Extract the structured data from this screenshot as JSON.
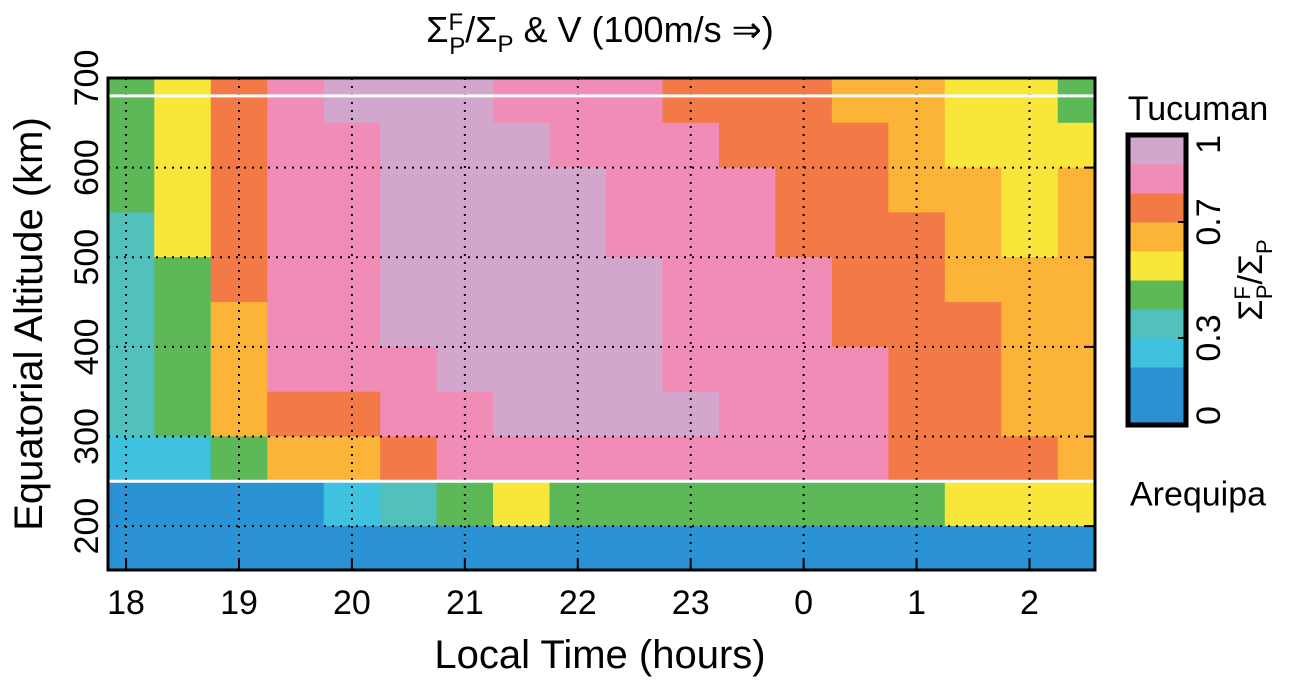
{
  "chart_data": {
    "type": "contour",
    "title": [
      "Σ",
      "F",
      "P",
      "/Σ",
      "P",
      " & V (100m/s ⇒)"
    ],
    "xlabel": "Local Time (hours)",
    "ylabel": "Equatorial Altitude (km)",
    "xlim": [
      17.84,
      26.58
    ],
    "ylim": [
      151,
      700
    ],
    "xticks": [
      18,
      19,
      20,
      21,
      22,
      23,
      {
        "value": 24,
        "label": "0"
      },
      {
        "value": 25,
        "label": "1"
      },
      {
        "value": 26,
        "label": "2"
      }
    ],
    "yticks": [
      200,
      300,
      400,
      500,
      600,
      700
    ],
    "grid": true,
    "x": [
      18,
      18.5,
      19,
      19.5,
      20,
      20.5,
      21,
      21.5,
      22,
      22.5,
      23,
      23.5,
      24,
      24.5,
      25,
      25.5,
      26,
      26.5
    ],
    "y": [
      675,
      625,
      575,
      525,
      475,
      425,
      375,
      325,
      275,
      225,
      175
    ],
    "z": [
      [
        0.45,
        0.55,
        0.75,
        0.85,
        0.92,
        0.92,
        0.92,
        0.85,
        0.85,
        0.85,
        0.78,
        0.78,
        0.75,
        0.65,
        0.62,
        0.55,
        0.55,
        0.45
      ],
      [
        0.45,
        0.55,
        0.75,
        0.85,
        0.85,
        0.92,
        0.92,
        0.92,
        0.85,
        0.85,
        0.85,
        0.78,
        0.75,
        0.75,
        0.65,
        0.55,
        0.55,
        0.55
      ],
      [
        0.45,
        0.55,
        0.75,
        0.85,
        0.85,
        0.92,
        0.92,
        0.92,
        0.92,
        0.85,
        0.85,
        0.85,
        0.78,
        0.75,
        0.65,
        0.62,
        0.55,
        0.62
      ],
      [
        0.35,
        0.55,
        0.75,
        0.85,
        0.85,
        0.92,
        0.92,
        0.92,
        0.92,
        0.85,
        0.85,
        0.85,
        0.78,
        0.75,
        0.75,
        0.65,
        0.55,
        0.62
      ],
      [
        0.35,
        0.45,
        0.75,
        0.85,
        0.85,
        0.92,
        0.92,
        0.92,
        0.92,
        0.92,
        0.85,
        0.85,
        0.85,
        0.78,
        0.75,
        0.65,
        0.62,
        0.65
      ],
      [
        0.35,
        0.45,
        0.65,
        0.85,
        0.85,
        0.92,
        0.92,
        0.92,
        0.92,
        0.92,
        0.85,
        0.85,
        0.85,
        0.78,
        0.75,
        0.75,
        0.65,
        0.65
      ],
      [
        0.35,
        0.45,
        0.65,
        0.85,
        0.85,
        0.85,
        0.92,
        0.92,
        0.92,
        0.92,
        0.85,
        0.85,
        0.85,
        0.85,
        0.78,
        0.75,
        0.65,
        0.65
      ],
      [
        0.35,
        0.45,
        0.65,
        0.75,
        0.78,
        0.85,
        0.85,
        0.92,
        0.92,
        0.92,
        0.92,
        0.85,
        0.85,
        0.85,
        0.78,
        0.78,
        0.65,
        0.65
      ],
      [
        0.25,
        0.25,
        0.45,
        0.65,
        0.65,
        0.75,
        0.85,
        0.85,
        0.85,
        0.85,
        0.85,
        0.85,
        0.85,
        0.85,
        0.78,
        0.78,
        0.78,
        0.65
      ],
      [
        0.05,
        0.05,
        0.05,
        0.15,
        0.25,
        0.35,
        0.45,
        0.55,
        0.45,
        0.45,
        0.45,
        0.45,
        0.45,
        0.45,
        0.45,
        0.55,
        0.55,
        0.55
      ],
      [
        0.05,
        0.05,
        0.05,
        0.05,
        0.05,
        0.05,
        0.05,
        0.05,
        0.05,
        0.05,
        0.05,
        0.05,
        0.05,
        0.05,
        0.05,
        0.05,
        0.05,
        0.05
      ]
    ],
    "levels": [
      0,
      0.1,
      0.2,
      0.3,
      0.4,
      0.5,
      0.6,
      0.7,
      0.8,
      0.9,
      1
    ],
    "colors": [
      "#2a92d3",
      "#2a92d3",
      "#3ec2e0",
      "#52c1bb",
      "#5db857",
      "#f8e73a",
      "#fbb437",
      "#f37a46",
      "#f08cb6",
      "#d3a6cd"
    ],
    "colorbar_ticks": [
      0,
      0.3,
      0.7,
      1
    ],
    "colorbar_label": [
      "Σ",
      "F",
      "P",
      "/Σ",
      "P"
    ],
    "annotations": [
      {
        "label": "Tucuman",
        "y": 680
      },
      {
        "label": "Arequipa",
        "y": 250
      }
    ]
  }
}
